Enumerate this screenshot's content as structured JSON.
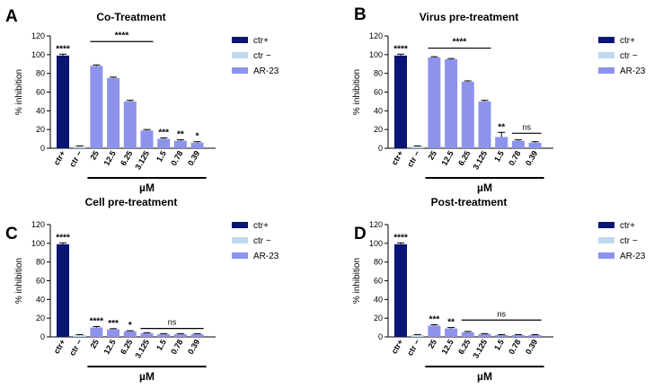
{
  "figure": {
    "xlabel": "µM",
    "ylabel": "% inhibition"
  },
  "colors": {
    "ctr_plus": "#0b1573",
    "ctr_minus": "#bfd9f0",
    "ar23": "#8d93ec"
  },
  "legend": [
    "ctr+",
    "ctr −",
    "AR-23"
  ],
  "chart_data": [
    {
      "type": "bar",
      "panel": "A",
      "title": "Co-Treatment",
      "xlabel": "µM",
      "ylabel": "% inhibition",
      "ylim": [
        0,
        120
      ],
      "yticks": [
        0,
        20,
        40,
        60,
        80,
        100,
        120
      ],
      "categories": [
        "ctr+",
        "ctr −",
        "25",
        "12.5",
        "6.25",
        "3.125",
        "1.5",
        "0.78",
        "0.39"
      ],
      "series": [
        {
          "name": "ctr+",
          "color_key": "ctr_plus",
          "values": [
            99,
            null,
            null,
            null,
            null,
            null,
            null,
            null,
            null
          ]
        },
        {
          "name": "ctr −",
          "color_key": "ctr_minus",
          "values": [
            null,
            2,
            null,
            null,
            null,
            null,
            null,
            null,
            null
          ]
        },
        {
          "name": "AR-23",
          "color_key": "ar23",
          "values": [
            null,
            null,
            88,
            75,
            50,
            19,
            10,
            8,
            6
          ]
        }
      ],
      "errors": [
        1.5,
        0.5,
        1,
        1,
        1.2,
        1,
        1,
        1,
        1
      ],
      "annotations": [
        {
          "category": "ctr+",
          "text": "****"
        },
        {
          "category": "1.5",
          "text": "***"
        },
        {
          "category": "0.78",
          "text": "**"
        },
        {
          "category": "0.39",
          "text": "*"
        }
      ],
      "brackets": [
        {
          "from": "25",
          "to": "3.125",
          "text": "****",
          "y": 114
        }
      ]
    },
    {
      "type": "bar",
      "panel": "B",
      "title": "Virus pre-treatment",
      "xlabel": "µM",
      "ylabel": "% inhibition",
      "ylim": [
        0,
        120
      ],
      "yticks": [
        0,
        20,
        40,
        60,
        80,
        100,
        120
      ],
      "categories": [
        "ctr+",
        "ctr −",
        "25",
        "12.5",
        "6.25",
        "3.125",
        "1.5",
        "0.78",
        "0.39"
      ],
      "series": [
        {
          "name": "ctr+",
          "color_key": "ctr_plus",
          "values": [
            99,
            null,
            null,
            null,
            null,
            null,
            null,
            null,
            null
          ]
        },
        {
          "name": "ctr −",
          "color_key": "ctr_minus",
          "values": [
            null,
            2,
            null,
            null,
            null,
            null,
            null,
            null,
            null
          ]
        },
        {
          "name": "AR-23",
          "color_key": "ar23",
          "values": [
            null,
            null,
            97,
            95,
            71,
            50,
            12,
            8,
            6
          ]
        }
      ],
      "errors": [
        1.5,
        0.5,
        0.8,
        0.8,
        1,
        1.2,
        5,
        1,
        1
      ],
      "annotations": [
        {
          "category": "ctr+",
          "text": "****"
        },
        {
          "category": "1.5",
          "text": "**"
        }
      ],
      "brackets": [
        {
          "from": "25",
          "to": "3.125",
          "text": "****",
          "y": 107
        },
        {
          "from": "0.78",
          "to": "0.39",
          "text": "ns",
          "y": 16
        }
      ]
    },
    {
      "type": "bar",
      "panel": "C",
      "title": "Cell pre-treatment",
      "xlabel": "µM",
      "ylabel": "% inhibition",
      "ylim": [
        0,
        120
      ],
      "yticks": [
        0,
        20,
        40,
        60,
        80,
        100,
        120
      ],
      "categories": [
        "ctr+",
        "ctr −",
        "25",
        "12.5",
        "6.25",
        "3.125",
        "1.5",
        "0.78",
        "0.39"
      ],
      "series": [
        {
          "name": "ctr+",
          "color_key": "ctr_plus",
          "values": [
            99,
            null,
            null,
            null,
            null,
            null,
            null,
            null,
            null
          ]
        },
        {
          "name": "ctr −",
          "color_key": "ctr_minus",
          "values": [
            null,
            2,
            null,
            null,
            null,
            null,
            null,
            null,
            null
          ]
        },
        {
          "name": "AR-23",
          "color_key": "ar23",
          "values": [
            null,
            null,
            10,
            8,
            6,
            4,
            3,
            3,
            3
          ]
        }
      ],
      "errors": [
        1.5,
        0.5,
        1,
        0.8,
        0.6,
        0.5,
        0.5,
        0.5,
        0.5
      ],
      "annotations": [
        {
          "category": "ctr+",
          "text": "****"
        },
        {
          "category": "25",
          "text": "****"
        },
        {
          "category": "12.5",
          "text": "***"
        },
        {
          "category": "6.25",
          "text": "*"
        }
      ],
      "brackets": [
        {
          "from": "3.125",
          "to": "0.39",
          "text": "ns",
          "y": 9
        }
      ]
    },
    {
      "type": "bar",
      "panel": "D",
      "title": "Post-treatment",
      "xlabel": "µM",
      "ylabel": "% inhibition",
      "ylim": [
        0,
        120
      ],
      "yticks": [
        0,
        20,
        40,
        60,
        80,
        100,
        120
      ],
      "categories": [
        "ctr+",
        "ctr −",
        "25",
        "12.5",
        "6.25",
        "3.125",
        "1.5",
        "0.78",
        "0.39"
      ],
      "series": [
        {
          "name": "ctr+",
          "color_key": "ctr_plus",
          "values": [
            99,
            null,
            null,
            null,
            null,
            null,
            null,
            null,
            null
          ]
        },
        {
          "name": "ctr −",
          "color_key": "ctr_minus",
          "values": [
            null,
            2,
            null,
            null,
            null,
            null,
            null,
            null,
            null
          ]
        },
        {
          "name": "AR-23",
          "color_key": "ar23",
          "values": [
            null,
            null,
            12,
            9,
            5,
            3,
            2,
            2,
            2
          ]
        }
      ],
      "errors": [
        1.5,
        0.5,
        1,
        1,
        0.8,
        0.5,
        0.5,
        0.5,
        0.5
      ],
      "annotations": [
        {
          "category": "25",
          "text": "***"
        },
        {
          "category": "12.5",
          "text": "**"
        },
        {
          "category": "ctr+",
          "text": "****"
        }
      ],
      "brackets": [
        {
          "from": "6.25",
          "to": "0.39",
          "text": "ns",
          "y": 18
        }
      ]
    }
  ]
}
